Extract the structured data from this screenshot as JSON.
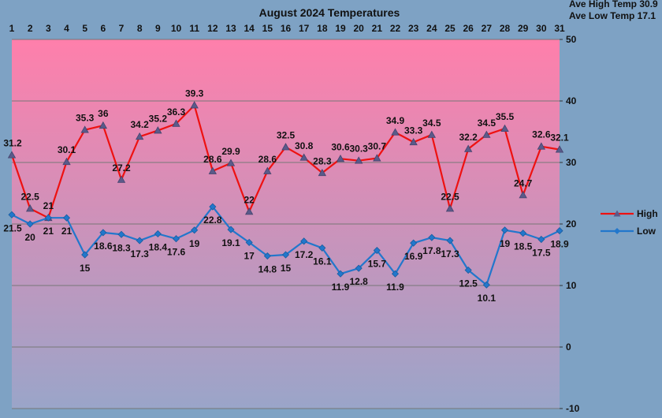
{
  "chart_data": {
    "type": "line",
    "title": "August 2024 Temperatures",
    "x": [
      "1",
      "2",
      "3",
      "4",
      "5",
      "6",
      "7",
      "8",
      "9",
      "10",
      "11",
      "12",
      "13",
      "14",
      "15",
      "16",
      "17",
      "18",
      "19",
      "20",
      "21",
      "22",
      "23",
      "24",
      "25",
      "26",
      "27",
      "28",
      "29",
      "30",
      "31"
    ],
    "series": [
      {
        "name": "High",
        "color": "#ee1111",
        "marker": "triangle",
        "values": [
          31.2,
          22.5,
          21,
          30.1,
          35.3,
          36,
          27.2,
          34.2,
          35.2,
          36.3,
          39.3,
          28.6,
          29.9,
          22,
          28.6,
          32.5,
          30.8,
          28.3,
          30.6,
          30.3,
          30.7,
          34.9,
          33.3,
          34.5,
          22.5,
          32.2,
          34.5,
          35.5,
          24.7,
          32.6,
          32.1
        ]
      },
      {
        "name": "Low",
        "color": "#2277cc",
        "marker": "diamond",
        "values": [
          21.5,
          20,
          21,
          21,
          15,
          18.6,
          18.3,
          17.3,
          18.4,
          17.6,
          19,
          22.8,
          19.1,
          17,
          14.8,
          15,
          17.2,
          16.1,
          11.9,
          12.8,
          15.7,
          11.9,
          16.9,
          17.8,
          17.3,
          12.5,
          10.1,
          19,
          18.5,
          17.5,
          18.9
        ]
      }
    ],
    "data_labels": {
      "high": [
        "31.2",
        "22.5",
        "21",
        "30.1",
        "35.3",
        "36",
        "27.2",
        "34.2",
        "35.2",
        "36.3",
        "39.3",
        "28.6",
        "29.9",
        "22",
        "28.6",
        "32.5",
        "30.8",
        "28.3",
        "30.6",
        "30.3",
        "30.7",
        "34.9",
        "33.3",
        "34.5",
        "22.5",
        "32.2",
        "34.5",
        "35.5",
        "24.7",
        "32.6",
        "32.1"
      ],
      "low": [
        "21.5",
        "20",
        "21",
        "21",
        "15",
        "18.6",
        "18.3",
        "17.3",
        "18.4",
        "17.6",
        "19",
        "22.8",
        "19.1",
        "17",
        "14.8",
        "15",
        "17.2",
        "16.1",
        "11.9",
        "12.8",
        "15.7",
        "11.9",
        "16.9",
        "17.8",
        "17.3",
        "12.5",
        "10.1",
        "19",
        "18.5",
        "17.5",
        "18.9"
      ]
    },
    "y_ticks": [
      "50",
      "40",
      "30",
      "20",
      "10",
      "0",
      "-10"
    ],
    "ylim": [
      -10,
      50
    ],
    "y_axis_position": "right",
    "x_axis_position": "top",
    "grid": true,
    "legend_position": "right",
    "annotations": [
      "Ave High Temp 30.9",
      "Ave Low Temp 17.1"
    ],
    "colors": {
      "page_background": "#7ea2c4",
      "plot_gradient_top": "#ff7fab",
      "plot_gradient_bottom": "#9aa5c9",
      "gridline": "#777777"
    }
  }
}
